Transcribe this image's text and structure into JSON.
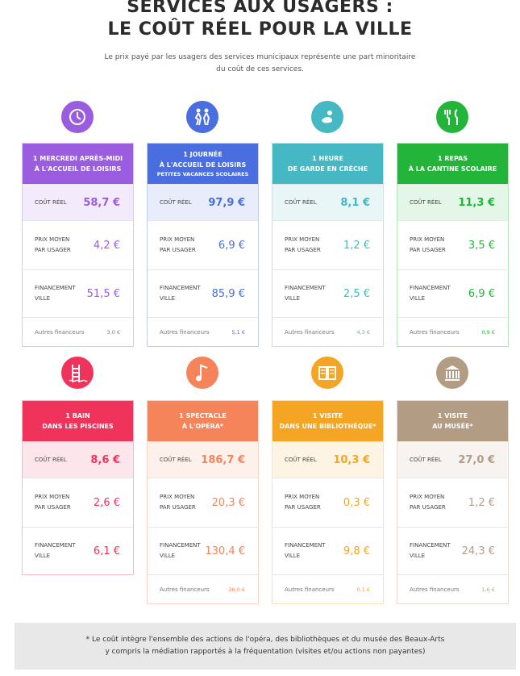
{
  "header": {
    "title": [
      "SERVICES AUX USAGERS :",
      "LE COÛT RÉEL POUR LA VILLE"
    ],
    "subtitle": [
      "Le prix payé par les usagers des services municipaux représente une part minoritaire",
      "du coût de ces services."
    ]
  },
  "cards": [
    {
      "color": "#9b5de0",
      "header": [
        "1 MERCREDI APRÈS-MIDI",
        "À L'ACCUEIL DE LOISIRS"
      ],
      "rows": [
        {
          "label": [
            "COÛT RÉEL"
          ],
          "value": "58,7 €"
        },
        {
          "label": [
            "PRIX MOYEN",
            "PAR USAGER"
          ],
          "value": "4,2 €"
        },
        {
          "label": [
            "FINANCEMENT",
            "VILLE"
          ],
          "value": "51,5 €"
        }
      ],
      "other": {
        "label": "Autres financeurs",
        "value": "3,0 €"
      }
    },
    {
      "color": "#4a6ee0",
      "header": [
        "1 JOURNÉE",
        "À L'ACCUEIL DE LOISIRS",
        "PETITES VACANCES SCOLAIRES"
      ],
      "rows": [
        {
          "label": [
            "COÛT RÉEL"
          ],
          "value": "97,9 €"
        },
        {
          "label": [
            "PRIX MOYEN",
            "PAR USAGER"
          ],
          "value": "6,9 €"
        },
        {
          "label": [
            "FINANCEMENT",
            "VILLE"
          ],
          "value": "85,9 €"
        }
      ],
      "other": {
        "label": "Autres financeurs",
        "value": "5,1 €"
      }
    },
    {
      "color": "#45b8c3",
      "header": [
        "1 HEURE",
        "DE GARDE EN CRÈCHE"
      ],
      "rows": [
        {
          "label": [
            "COÛT RÉEL"
          ],
          "value": "8,1 €"
        },
        {
          "label": [
            "PRIX MOYEN",
            "PAR USAGER"
          ],
          "value": "1,2 €"
        },
        {
          "label": [
            "FINANCEMENT",
            "VILLE"
          ],
          "value": "2,5 €"
        }
      ],
      "other": {
        "label": "Autres financeurs",
        "value": "4,3 €"
      }
    },
    {
      "color": "#22b53a",
      "header": [
        "1 REPAS",
        "À LA CANTINE SCOLAIRE"
      ],
      "rows": [
        {
          "label": [
            "COÛT RÉEL"
          ],
          "value": "11,3 €"
        },
        {
          "label": [
            "PRIX MOYEN",
            "PAR USAGER"
          ],
          "value": "3,5 €"
        },
        {
          "label": [
            "FINANCEMENT",
            "VILLE"
          ],
          "value": "6,9 €"
        }
      ],
      "other": {
        "label": "Autres financeurs",
        "value": "0,9 €"
      }
    },
    {
      "color": "#f0335a",
      "header": [
        "1 BAIN",
        "DANS LES PISCINES"
      ],
      "rows": [
        {
          "label": [
            "COÛT RÉEL"
          ],
          "value": "8,6 €"
        },
        {
          "label": [
            "PRIX MOYEN",
            "PAR USAGER"
          ],
          "value": "2,6 €"
        },
        {
          "label": [
            "FINANCEMENT",
            "VILLE"
          ],
          "value": "6,1 €"
        }
      ]
    },
    {
      "color": "#f5845a",
      "header": [
        "1 SPECTACLE",
        "À L'OPÉRA*"
      ],
      "rows": [
        {
          "label": [
            "COÛT RÉEL"
          ],
          "value": "186,7 €"
        },
        {
          "label": [
            "PRIX MOYEN",
            "PAR USAGER"
          ],
          "value": "20,3 €"
        },
        {
          "label": [
            "FINANCEMENT",
            "VILLE"
          ],
          "value": "130,4 €"
        }
      ],
      "other": {
        "label": "Autres financeurs",
        "value": "36,0 €"
      }
    },
    {
      "color": "#f5a524",
      "header": [
        "1 VISITE",
        "DANS UNE BIBLIOTHÈQUE*"
      ],
      "rows": [
        {
          "label": [
            "COÛT RÉEL"
          ],
          "value": "10,3 €"
        },
        {
          "label": [
            "PRIX MOYEN",
            "PAR USAGER"
          ],
          "value": "0,3 €"
        },
        {
          "label": [
            "FINANCEMENT",
            "VILLE"
          ],
          "value": "9,8 €"
        }
      ],
      "other": {
        "label": "Autres financeurs",
        "value": "0,1 €"
      }
    },
    {
      "color": "#b29c84",
      "header": [
        "1 VISITE",
        "AU MUSÉE*"
      ],
      "rows": [
        {
          "label": [
            "COÛT RÉEL"
          ],
          "value": "27,0 €"
        },
        {
          "label": [
            "PRIX MOYEN",
            "PAR USAGER"
          ],
          "value": "1,2 €"
        },
        {
          "label": [
            "FINANCEMENT",
            "VILLE"
          ],
          "value": "24,3 €"
        }
      ],
      "other": {
        "label": "Autres financeurs",
        "value": "1,6 €"
      }
    }
  ],
  "footnote": [
    "* Le coût intègre l'ensemble des actions de l'opéra, des bibliothèques et du musée des Beaux-Arts",
    "y compris la médiation rapportés à la fréquentation (visites et/ou actions non payantes)"
  ]
}
